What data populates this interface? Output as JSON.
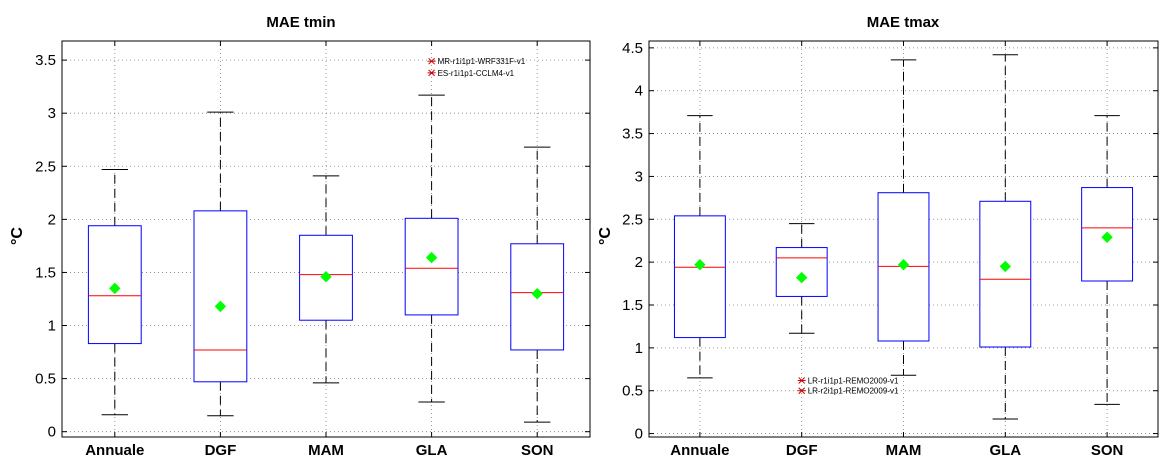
{
  "colors": {
    "box": "#0000ff",
    "median": "#ff0000",
    "mean": "#00ff00",
    "whisker": "#000000",
    "outlier": "#cc0000",
    "grid": "#7f7f7f"
  },
  "chart_data": [
    {
      "type": "box",
      "title": "MAE tmin",
      "ylabel": "°C",
      "xlabel": "",
      "ylim": [
        -0.05,
        3.68
      ],
      "yticks": [
        0,
        0.5,
        1,
        1.5,
        2,
        2.5,
        3,
        3.5
      ],
      "ytick_labels": [
        "0",
        "0.5",
        "1",
        "1.5",
        "2",
        "2.5",
        "3",
        "3.5"
      ],
      "grid": true,
      "categories": [
        "Annuale",
        "DGF",
        "MAM",
        "GLA",
        "SON"
      ],
      "boxes": [
        {
          "whisker_low": 0.16,
          "q1": 0.83,
          "median": 1.28,
          "q3": 1.94,
          "whisker_high": 2.47,
          "mean": 1.35
        },
        {
          "whisker_low": 0.15,
          "q1": 0.47,
          "median": 0.77,
          "q3": 2.08,
          "whisker_high": 3.01,
          "mean": 1.18
        },
        {
          "whisker_low": 0.46,
          "q1": 1.05,
          "median": 1.48,
          "q3": 1.85,
          "whisker_high": 2.41,
          "mean": 1.46
        },
        {
          "whisker_low": 0.28,
          "q1": 1.1,
          "median": 1.54,
          "q3": 2.01,
          "whisker_high": 3.17,
          "mean": 1.64
        },
        {
          "whisker_low": 0.09,
          "q1": 0.77,
          "median": 1.31,
          "q3": 1.77,
          "whisker_high": 2.68,
          "mean": 1.3
        }
      ],
      "outliers": [
        {
          "category": "GLA",
          "value": 3.49,
          "label": "MR-r1i1p1-WRF331F-v1"
        },
        {
          "category": "GLA",
          "value": 3.38,
          "label": "ES-r1i1p1-CCLM4-v1"
        }
      ]
    },
    {
      "type": "box",
      "title": "MAE tmax",
      "ylabel": "°C",
      "xlabel": "",
      "ylim": [
        -0.04,
        4.58
      ],
      "yticks": [
        0,
        0.5,
        1,
        1.5,
        2,
        2.5,
        3,
        3.5,
        4,
        4.5
      ],
      "ytick_labels": [
        "0",
        "0.5",
        "1",
        "1.5",
        "2",
        "2.5",
        "3",
        "3.5",
        "4",
        "4.5"
      ],
      "grid": true,
      "categories": [
        "Annuale",
        "DGF",
        "MAM",
        "GLA",
        "SON"
      ],
      "boxes": [
        {
          "whisker_low": 0.65,
          "q1": 1.12,
          "median": 1.94,
          "q3": 2.54,
          "whisker_high": 3.71,
          "mean": 1.97
        },
        {
          "whisker_low": 1.17,
          "q1": 1.6,
          "median": 2.05,
          "q3": 2.17,
          "whisker_high": 2.45,
          "mean": 1.82
        },
        {
          "whisker_low": 0.68,
          "q1": 1.08,
          "median": 1.95,
          "q3": 2.81,
          "whisker_high": 4.36,
          "mean": 1.97
        },
        {
          "whisker_low": 0.17,
          "q1": 1.01,
          "median": 1.8,
          "q3": 2.71,
          "whisker_high": 4.42,
          "mean": 1.95
        },
        {
          "whisker_low": 0.34,
          "q1": 1.78,
          "median": 2.4,
          "q3": 2.87,
          "whisker_high": 3.71,
          "mean": 2.29
        }
      ],
      "outliers": [
        {
          "category": "DGF",
          "value": 0.62,
          "label": "LR-r1i1p1-REMO2009-v1"
        },
        {
          "category": "DGF",
          "value": 0.5,
          "label": "LR-r2i1p1-REMO2009-v1"
        }
      ]
    }
  ]
}
